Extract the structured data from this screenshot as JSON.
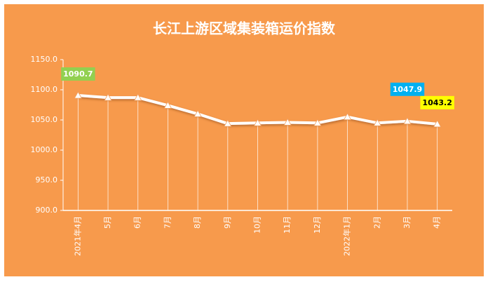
{
  "chart_data": {
    "type": "line",
    "title": "长江上游区域集装箱运价指数",
    "categories": [
      "2021年4月",
      "5月",
      "6月",
      "7月",
      "8月",
      "9月",
      "10月",
      "11月",
      "12月",
      "2022年1月",
      "2月",
      "3月",
      "4月"
    ],
    "values": [
      1090.7,
      1087,
      1087,
      1074,
      1060,
      1044,
      1045,
      1046,
      1045,
      1055,
      1045,
      1047.9,
      1043.2
    ],
    "value_labels": [
      "1090.7",
      null,
      null,
      null,
      null,
      null,
      null,
      null,
      null,
      null,
      null,
      "1047.9",
      "1043.2"
    ],
    "value_label_colors": [
      "#92d050",
      null,
      null,
      null,
      null,
      null,
      null,
      null,
      null,
      null,
      null,
      "#00b0f0",
      "#ffff00"
    ],
    "color": "#ffffff",
    "background": "#f79a4c",
    "ylim": [
      900,
      1150
    ],
    "yticks": [
      {
        "value": 900,
        "label": "900.0"
      },
      {
        "value": 950,
        "label": "950.0"
      },
      {
        "value": 1000,
        "label": "1000.0"
      },
      {
        "value": 1050,
        "label": "1050.0"
      },
      {
        "value": 1100,
        "label": "1100.0"
      },
      {
        "value": 1150,
        "label": "1150.0"
      }
    ],
    "grid": false,
    "drop_lines": true
  }
}
